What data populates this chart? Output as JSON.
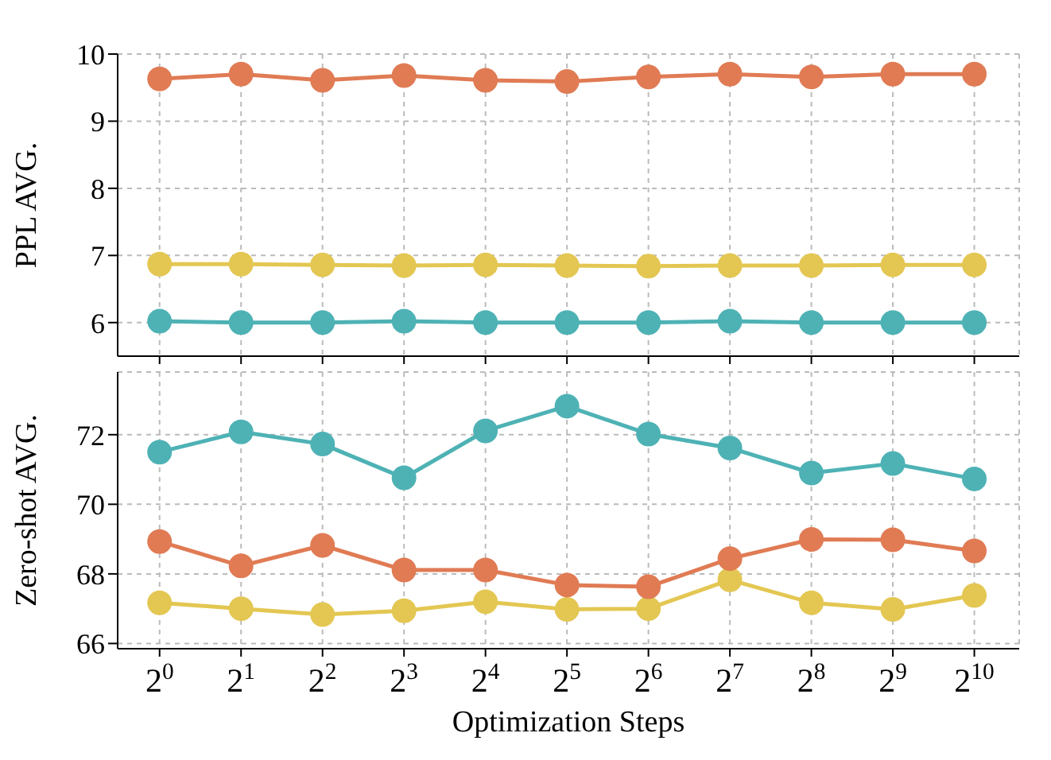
{
  "chart_data": [
    {
      "type": "line",
      "ylabel": "PPL AVG.",
      "x": [
        1,
        2,
        4,
        8,
        16,
        32,
        64,
        128,
        256,
        512,
        1024
      ],
      "log": "x",
      "xlim": [
        0.7,
        1500
      ],
      "xticks": [
        {
          "value": 1,
          "label": null
        },
        {
          "value": 2,
          "label": null
        },
        {
          "value": 4,
          "label": null
        },
        {
          "value": 8,
          "label": null
        },
        {
          "value": 16,
          "label": null
        },
        {
          "value": 32,
          "label": null
        },
        {
          "value": 64,
          "label": null
        },
        {
          "value": 128,
          "label": null
        },
        {
          "value": 256,
          "label": null
        },
        {
          "value": 512,
          "label": null
        },
        {
          "value": 1024,
          "label": null
        }
      ],
      "ylim": [
        5.5,
        10
      ],
      "yticks": [
        6,
        7,
        8,
        9,
        10
      ],
      "grid": true,
      "marker": "circle",
      "tick_labels": "y",
      "series": [
        {
          "color": "#e3c752",
          "values": [
            6.87,
            6.87,
            6.86,
            6.85,
            6.86,
            6.85,
            6.84,
            6.85,
            6.85,
            6.86,
            6.86
          ]
        },
        {
          "color": "#4eb2b5",
          "values": [
            6.02,
            6.0,
            6.0,
            6.02,
            6.0,
            6.0,
            6.0,
            6.02,
            6.0,
            6.0,
            6.0
          ]
        },
        {
          "color": "#e07b54",
          "values": [
            9.63,
            9.7,
            9.61,
            9.68,
            9.61,
            9.59,
            9.66,
            9.7,
            9.66,
            9.7,
            9.7
          ]
        }
      ]
    },
    {
      "type": "line",
      "ylabel": "Zero-shot AVG.",
      "xlabel": "Optimization Steps",
      "x": [
        1,
        2,
        4,
        8,
        16,
        32,
        64,
        128,
        256,
        512,
        1024
      ],
      "log": "x",
      "xlim": [
        0.7,
        1500
      ],
      "xticks": [
        {
          "value": 1,
          "label": "2$^{0}$"
        },
        {
          "value": 2,
          "label": "2$^{1}$"
        },
        {
          "value": 4,
          "label": "2$^{2}$"
        },
        {
          "value": 8,
          "label": "2$^{3}$"
        },
        {
          "value": 16,
          "label": "2$^{4}$"
        },
        {
          "value": 32,
          "label": "2$^{5}$"
        },
        {
          "value": 64,
          "label": "2$^{6}$"
        },
        {
          "value": 128,
          "label": "2$^{7}$"
        },
        {
          "value": 256,
          "label": "2$^{8}$"
        },
        {
          "value": 512,
          "label": "2$^{9}$"
        },
        {
          "value": 1024,
          "label": "2$^{10}$"
        }
      ],
      "ylim": [
        65.85,
        73.8
      ],
      "yticks": [
        66,
        68,
        70,
        72
      ],
      "grid": true,
      "marker": "circle",
      "series": [
        {
          "color": "#e3c752",
          "values": [
            67.17,
            67.0,
            66.83,
            66.94,
            67.2,
            66.98,
            67.0,
            67.83,
            67.17,
            66.98,
            67.38
          ]
        },
        {
          "color": "#4eb2b5",
          "values": [
            71.5,
            72.08,
            71.73,
            70.76,
            72.11,
            72.82,
            72.02,
            71.62,
            70.9,
            71.17,
            70.73
          ]
        },
        {
          "color": "#e07b54",
          "values": [
            68.93,
            68.23,
            68.82,
            68.11,
            68.11,
            67.68,
            67.63,
            68.44,
            68.99,
            68.98,
            68.66
          ]
        }
      ]
    }
  ]
}
